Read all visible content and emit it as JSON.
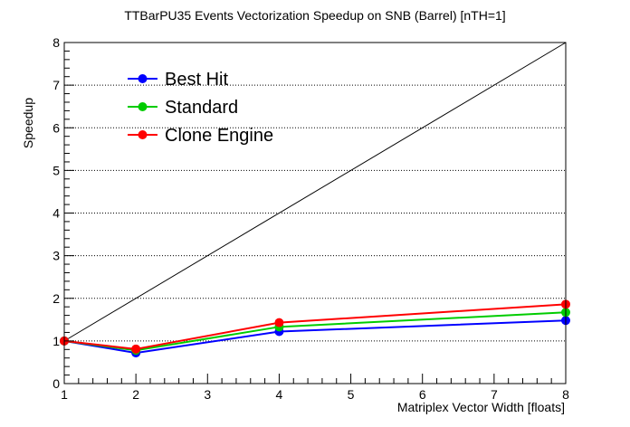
{
  "chart_data": {
    "type": "line",
    "title": "TTBarPU35 Events Vectorization Speedup on SNB (Barrel) [nTH=1]",
    "xlabel": "Matriplex Vector Width [floats]",
    "ylabel": "Speedup",
    "xlim": [
      1,
      8
    ],
    "ylim": [
      0,
      8
    ],
    "x_ticks": [
      1,
      2,
      3,
      4,
      5,
      6,
      7,
      8
    ],
    "y_ticks": [
      0,
      1,
      2,
      3,
      4,
      5,
      6,
      7,
      8
    ],
    "grid": "horizontal dotted",
    "legend_position": "top-left",
    "x": [
      1,
      2,
      4,
      8
    ],
    "series": [
      {
        "name": "Best Hit",
        "color": "#0000ff",
        "values": [
          1.0,
          0.72,
          1.22,
          1.48
        ]
      },
      {
        "name": "Standard",
        "color": "#00cc00",
        "values": [
          1.0,
          0.78,
          1.33,
          1.67
        ]
      },
      {
        "name": "Clone Engine",
        "color": "#ff0000",
        "values": [
          1.0,
          0.81,
          1.43,
          1.86
        ]
      }
    ],
    "reference_line": {
      "color": "#000000",
      "from": [
        1,
        1
      ],
      "to": [
        8,
        8
      ]
    }
  }
}
